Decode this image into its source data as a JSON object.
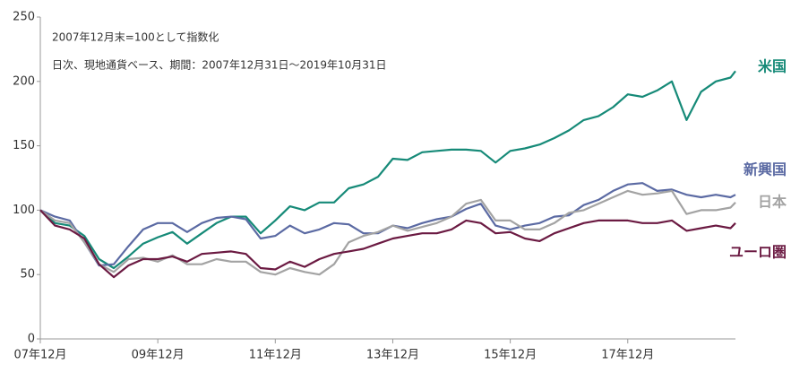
{
  "chart_data": {
    "type": "line",
    "annotations": [
      "2007年12月末=100として指数化",
      "日次、現地通貨ベース、期間：2007年12月31日～2019年10月31日"
    ],
    "x": [
      "2007-12",
      "2008-03",
      "2008-06",
      "2008-09",
      "2008-12",
      "2009-03",
      "2009-06",
      "2009-09",
      "2009-12",
      "2010-03",
      "2010-06",
      "2010-09",
      "2010-12",
      "2011-03",
      "2011-06",
      "2011-09",
      "2011-12",
      "2012-03",
      "2012-06",
      "2012-09",
      "2012-12",
      "2013-03",
      "2013-06",
      "2013-09",
      "2013-12",
      "2014-03",
      "2014-06",
      "2014-09",
      "2014-12",
      "2015-03",
      "2015-06",
      "2015-09",
      "2015-12",
      "2016-03",
      "2016-06",
      "2016-09",
      "2016-12",
      "2017-03",
      "2017-06",
      "2017-09",
      "2017-12",
      "2018-03",
      "2018-06",
      "2018-09",
      "2018-12",
      "2019-03",
      "2019-06",
      "2019-09",
      "2019-10"
    ],
    "series": [
      {
        "name": "米国",
        "color": "#168a78",
        "values": [
          100,
          90,
          88,
          80,
          62,
          55,
          64,
          74,
          79,
          83,
          74,
          82,
          90,
          95,
          95,
          82,
          92,
          103,
          100,
          106,
          106,
          117,
          120,
          126,
          140,
          139,
          145,
          146,
          147,
          147,
          146,
          137,
          146,
          148,
          151,
          156,
          162,
          170,
          173,
          180,
          190,
          188,
          193,
          200,
          170,
          192,
          200,
          203,
          208
        ]
      },
      {
        "name": "新興国",
        "color": "#5b6aa3",
        "values": [
          100,
          95,
          92,
          75,
          57,
          58,
          72,
          85,
          90,
          90,
          83,
          90,
          94,
          95,
          93,
          78,
          80,
          88,
          82,
          85,
          90,
          89,
          82,
          82,
          88,
          86,
          90,
          93,
          95,
          101,
          105,
          88,
          85,
          88,
          90,
          95,
          96,
          104,
          108,
          115,
          120,
          121,
          115,
          116,
          112,
          110,
          112,
          110,
          112
        ]
      },
      {
        "name": "日本",
        "color": "#a3a3a3",
        "values": [
          100,
          92,
          90,
          75,
          58,
          52,
          62,
          63,
          60,
          65,
          58,
          58,
          62,
          60,
          60,
          52,
          50,
          55,
          52,
          50,
          58,
          75,
          80,
          83,
          88,
          84,
          87,
          90,
          95,
          105,
          108,
          92,
          92,
          85,
          85,
          90,
          98,
          100,
          105,
          110,
          115,
          112,
          113,
          115,
          97,
          100,
          100,
          102,
          106
        ]
      },
      {
        "name": "ユーロ圏",
        "color": "#6b1a42",
        "values": [
          100,
          88,
          85,
          78,
          58,
          48,
          57,
          62,
          62,
          64,
          60,
          66,
          67,
          68,
          66,
          55,
          54,
          60,
          56,
          62,
          66,
          68,
          70,
          74,
          78,
          80,
          82,
          82,
          85,
          92,
          90,
          82,
          83,
          78,
          76,
          82,
          86,
          90,
          92,
          92,
          92,
          90,
          90,
          92,
          84,
          86,
          88,
          86,
          90
        ]
      }
    ],
    "xlim": [
      "2007-12",
      "2019-10"
    ],
    "xticks": [
      {
        "value": "2007-12",
        "label": "07年12月"
      },
      {
        "value": "2009-12",
        "label": "09年12月"
      },
      {
        "value": "2011-12",
        "label": "11年12月"
      },
      {
        "value": "2013-12",
        "label": "13年12月"
      },
      {
        "value": "2015-12",
        "label": "15年12月"
      },
      {
        "value": "2017-12",
        "label": "17年12月"
      }
    ],
    "ylim": [
      0,
      250
    ],
    "yticks": [
      0,
      50,
      100,
      150,
      200,
      250
    ],
    "grid": false
  }
}
